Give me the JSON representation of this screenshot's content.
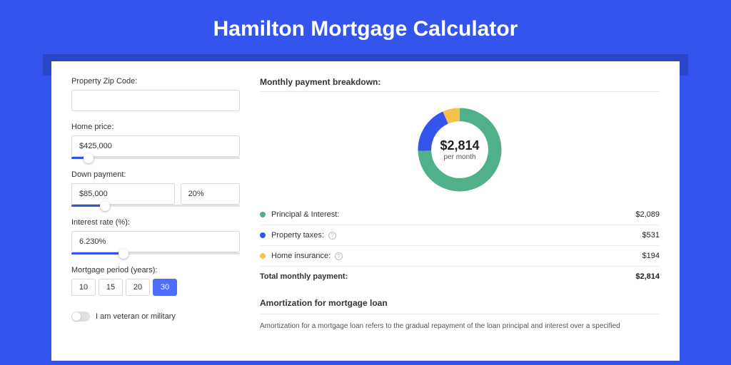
{
  "page_title": "Hamilton Mortgage Calculator",
  "colors": {
    "background": "#3355ee",
    "shadow_strip": "#2a47c9",
    "card_bg": "#ffffff",
    "principal": "#4fb08a",
    "taxes": "#3355ee",
    "insurance": "#f6c14b",
    "divider": "#e6e6e6",
    "period_active_bg": "#4d6eff"
  },
  "form": {
    "zip_label": "Property Zip Code:",
    "zip_value": "",
    "home_price_label": "Home price:",
    "home_price_value": "$425,000",
    "home_price_slider_pct": 10,
    "down_payment_label": "Down payment:",
    "down_payment_value": "$85,000",
    "down_payment_pct_value": "20%",
    "down_payment_slider_pct": 20,
    "interest_label": "Interest rate (%):",
    "interest_value": "6.230%",
    "interest_slider_pct": 31,
    "period_label": "Mortgage period (years):",
    "periods": [
      "10",
      "15",
      "20",
      "30"
    ],
    "period_active_index": 3,
    "veteran_label": "I am veteran or military"
  },
  "breakdown": {
    "title": "Monthly payment breakdown:",
    "donut_amount": "$2,814",
    "donut_sub": "per month",
    "donut_slices": [
      {
        "key": "principal",
        "value": 2089,
        "pct": 74.3,
        "color": "#4fb08a"
      },
      {
        "key": "taxes",
        "value": 531,
        "pct": 18.8,
        "color": "#3355ee"
      },
      {
        "key": "insurance",
        "value": 194,
        "pct": 6.9,
        "color": "#f6c14b"
      }
    ],
    "items": [
      {
        "label": "Principal & Interest:",
        "value": "$2,089",
        "color": "#4fb08a",
        "help": false
      },
      {
        "label": "Property taxes:",
        "value": "$531",
        "color": "#3355ee",
        "help": true
      },
      {
        "label": "Home insurance:",
        "value": "$194",
        "color": "#f6c14b",
        "help": true
      }
    ],
    "total_label": "Total monthly payment:",
    "total_value": "$2,814"
  },
  "amortization": {
    "title": "Amortization for mortgage loan",
    "text": "Amortization for a mortgage loan refers to the gradual repayment of the loan principal and interest over a specified"
  }
}
